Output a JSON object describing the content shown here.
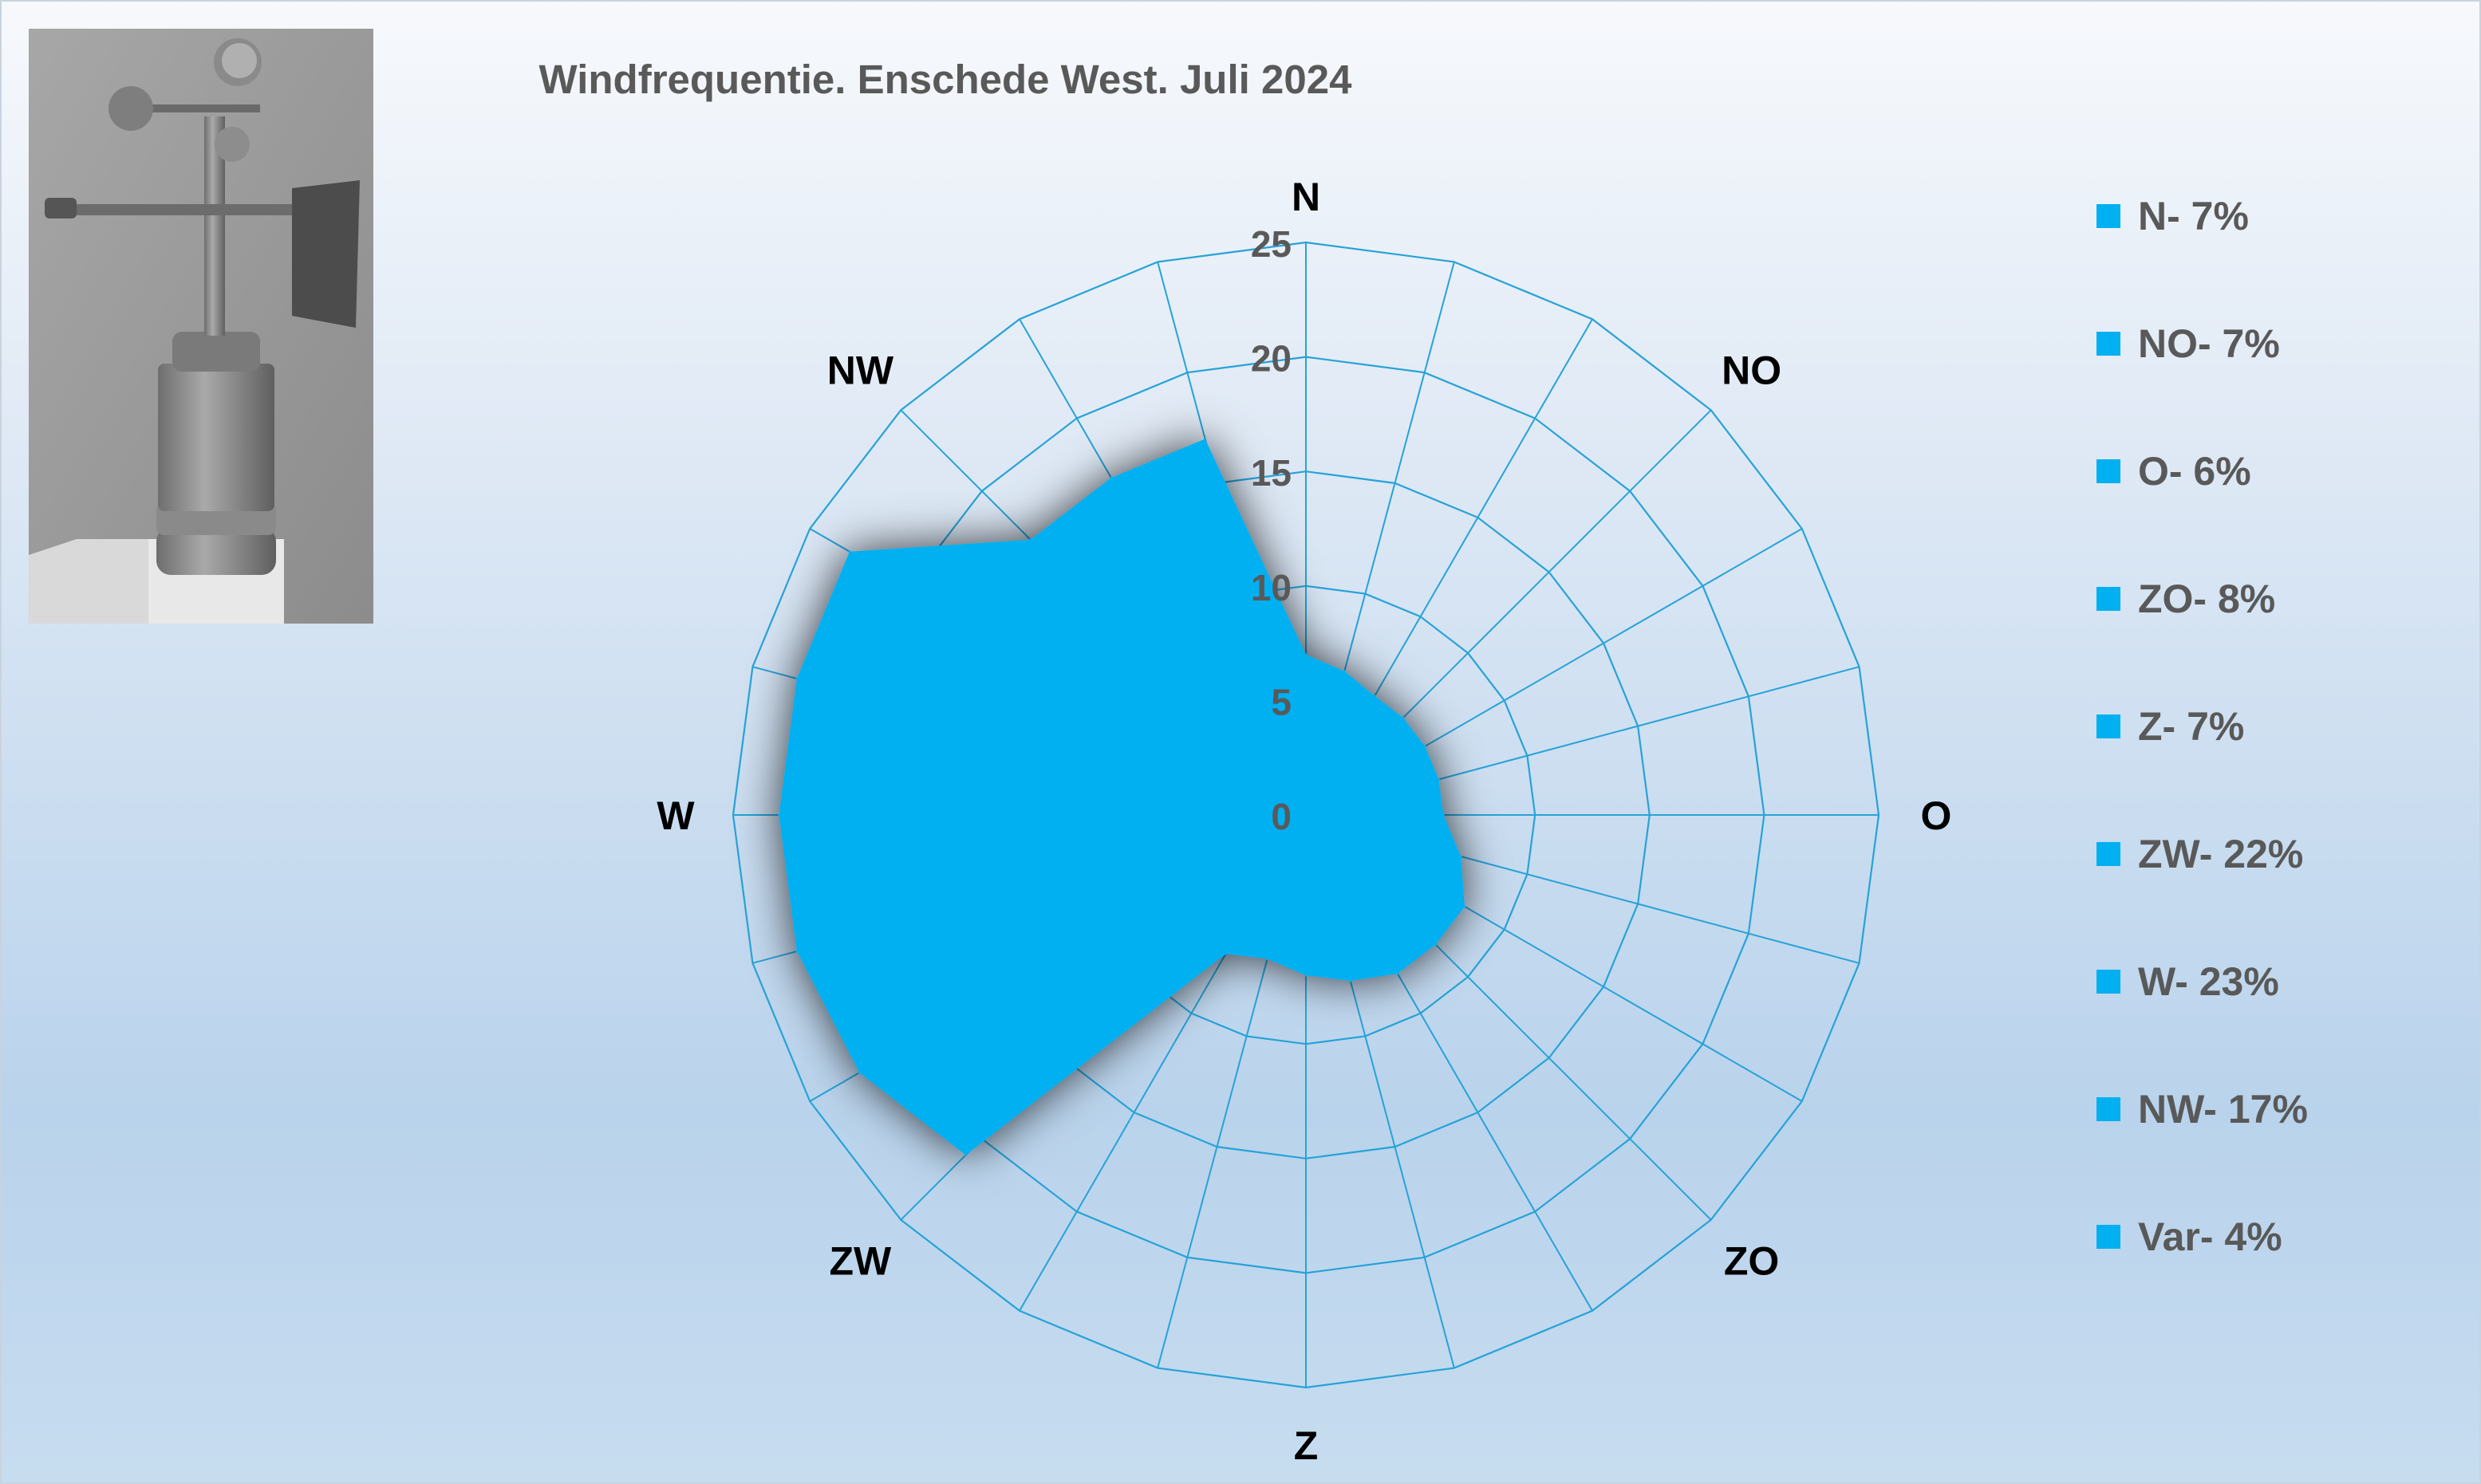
{
  "chart_data": {
    "type": "radar",
    "title": "Windfrequentie. Enschede West. Juli 2024",
    "direction_labels": [
      "N",
      "NO",
      "O",
      "ZO",
      "Z",
      "ZW",
      "W",
      "NW"
    ],
    "r_ticks": [
      "0",
      "5",
      "10",
      "15",
      "20",
      "25"
    ],
    "rlim": [
      0,
      25
    ],
    "spokes": 24,
    "grid": true,
    "series": [
      {
        "color": "#00b0f0",
        "values": [
          7,
          6.5,
          6,
          6,
          6,
          6,
          6,
          7,
          8,
          8,
          8,
          7.5,
          7,
          6.5,
          7,
          21,
          22.5,
          23,
          23,
          23,
          23,
          17,
          17,
          17
        ]
      }
    ],
    "legend": {
      "position": "right",
      "items": [
        "N- 7%",
        "NO- 7%",
        "O- 6%",
        "ZO- 8%",
        "Z- 7%",
        "ZW- 22%",
        "W- 23%",
        "NW- 17%",
        "Var- 4%"
      ]
    }
  },
  "colors": {
    "fill": "#00b0f0",
    "grid": "#27a2d8",
    "text": "#595959",
    "direction_text": "#000000"
  },
  "image": {
    "icon": "anemometer-photo"
  }
}
